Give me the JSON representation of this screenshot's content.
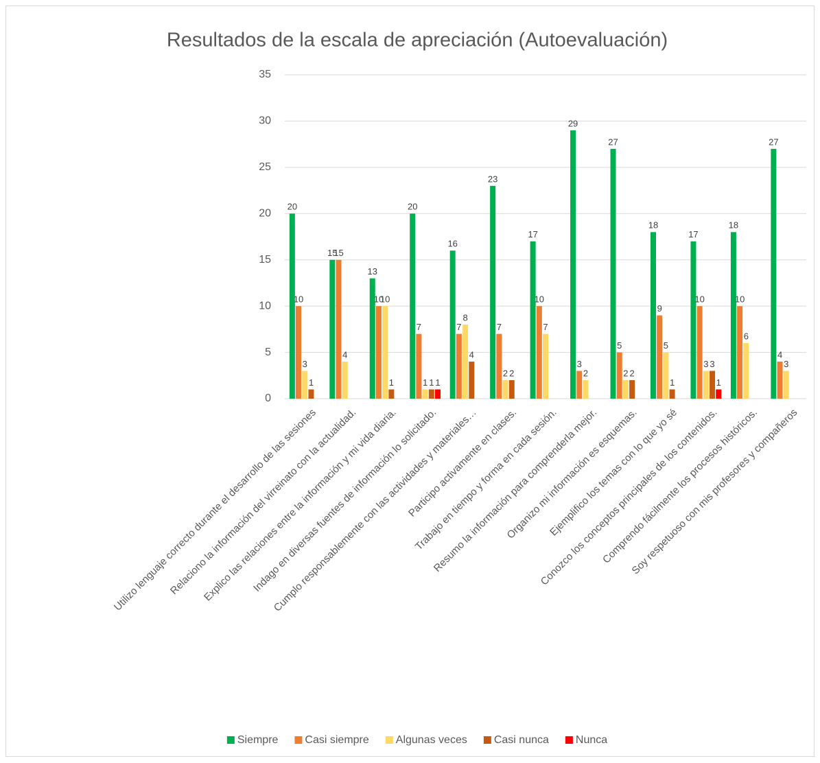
{
  "chart_data": {
    "type": "bar",
    "title": "Resultados de la escala de apreciación (Autoevaluación)",
    "categories": [
      "Utilizo lenguaje correcto durante el desarrollo de las sesiones",
      "Relaciono la información del virreinato con la actualidad.",
      "Explico las relaciones entre la información y mi vida diaria.",
      "Indago en diversas fuentes de información lo solicitado.",
      "Cumplo responsablemente con las actividades y materiales…",
      "Participo activamente en clases.",
      "Trabajo en tiempo y forma en cada sesión.",
      "Resumo la información para comprenderla mejor.",
      "Organizo mi información es esquemas.",
      "Ejemplifico los temas con lo que yo sé",
      "Conozco los conceptos principales de los contenidos.",
      "Comprendo fácilmente los procesos históricos.",
      "Soy respetuoso con mis profesores y compañeros"
    ],
    "series": [
      {
        "name": "Siempre",
        "color": "#00b050",
        "values": [
          20,
          15,
          13,
          20,
          16,
          23,
          17,
          29,
          27,
          18,
          17,
          18,
          27
        ]
      },
      {
        "name": "Casi siempre",
        "color": "#ed7d31",
        "values": [
          10,
          15,
          10,
          7,
          7,
          7,
          10,
          3,
          5,
          9,
          10,
          10,
          4
        ]
      },
      {
        "name": "Algunas veces",
        "color": "#ffd966",
        "values": [
          3,
          4,
          10,
          1,
          8,
          2,
          7,
          2,
          2,
          5,
          3,
          6,
          3
        ]
      },
      {
        "name": "Casi nunca",
        "color": "#c55a11",
        "values": [
          1,
          null,
          1,
          1,
          4,
          2,
          null,
          null,
          2,
          1,
          3,
          null,
          null
        ]
      },
      {
        "name": "Nunca",
        "color": "#ff0000",
        "values": [
          null,
          null,
          null,
          1,
          null,
          null,
          null,
          null,
          null,
          null,
          1,
          null,
          null
        ]
      }
    ],
    "ylim": [
      0,
      35
    ],
    "yticks": [
      0,
      5,
      10,
      15,
      20,
      25,
      30,
      35
    ],
    "grid": true,
    "legend": "bottom"
  }
}
